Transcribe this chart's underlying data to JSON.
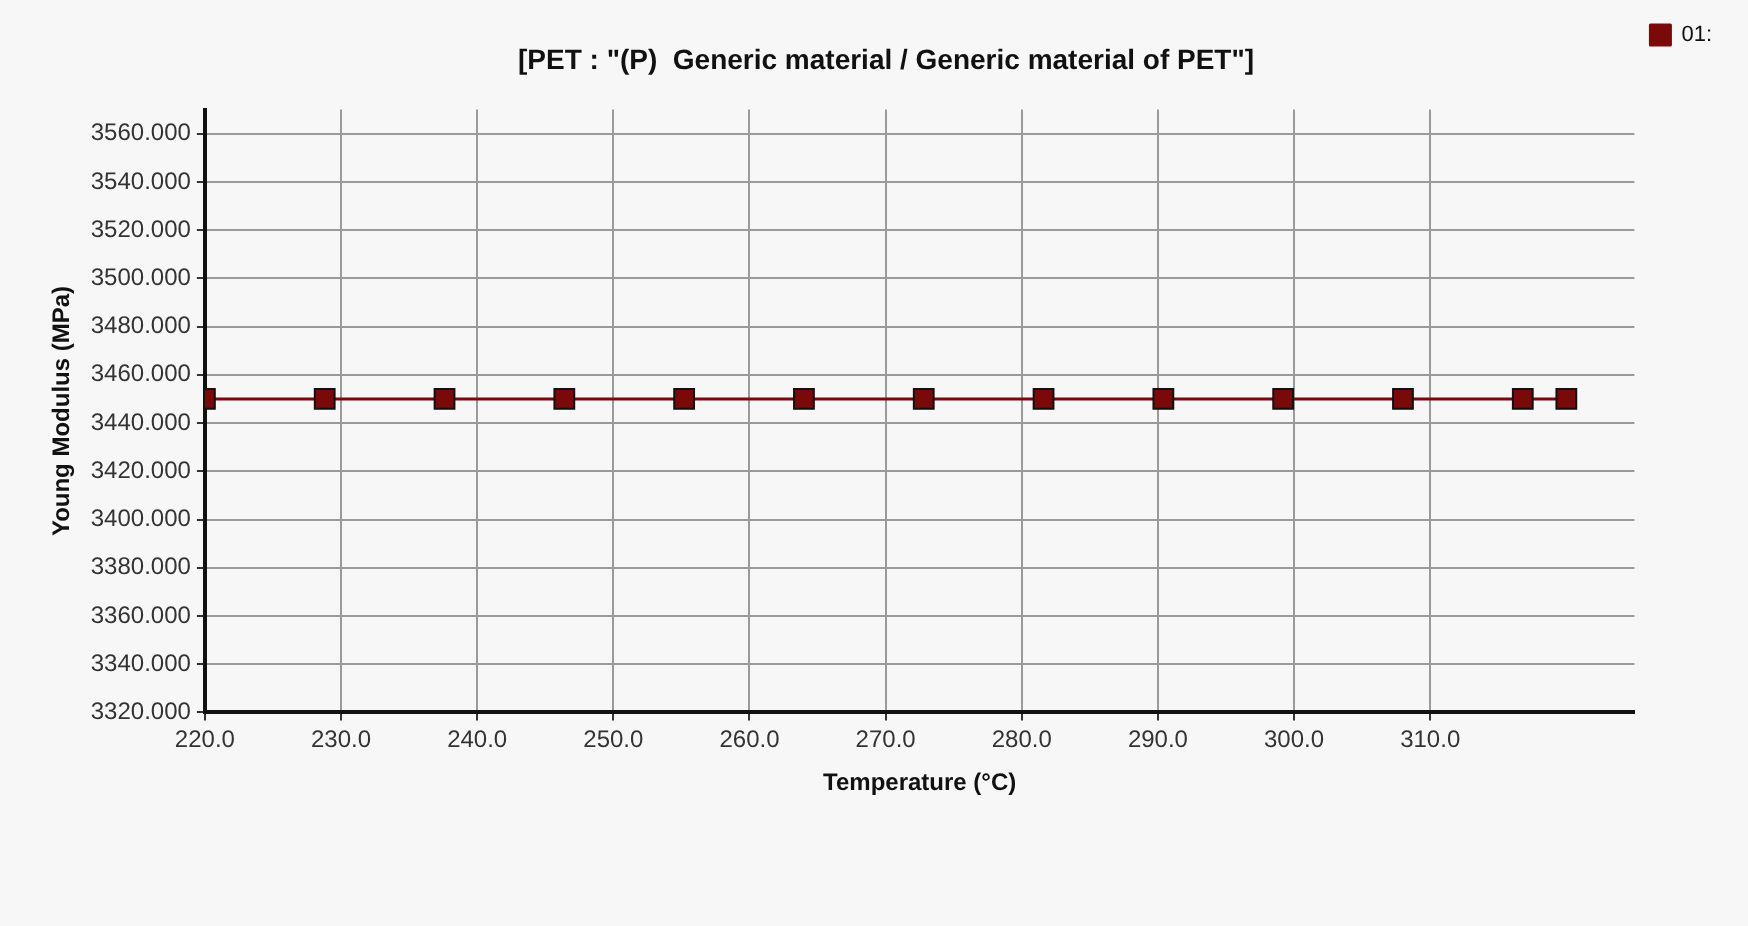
{
  "chart_data": {
    "type": "line",
    "title": "[PET : \"(P)  Generic material / Generic material of PET\"]",
    "xlabel": "Temperature (°C)",
    "ylabel": "Young Modulus (MPa)",
    "x": [
      220,
      228.8,
      237.6,
      246.4,
      255.2,
      264,
      272.8,
      281.6,
      290.4,
      299.2,
      308,
      316.8,
      320
    ],
    "series": [
      {
        "name": "01:",
        "color": "#7a0a0a",
        "values": [
          3450,
          3450,
          3450,
          3450,
          3450,
          3450,
          3450,
          3450,
          3450,
          3450,
          3450,
          3450,
          3450
        ]
      }
    ],
    "xlim": [
      220,
      325
    ],
    "xticks": [
      {
        "value": 220,
        "label": "220.0"
      },
      {
        "value": 230,
        "label": "230.0"
      },
      {
        "value": 240,
        "label": "240.0"
      },
      {
        "value": 250,
        "label": "250.0"
      },
      {
        "value": 260,
        "label": "260.0"
      },
      {
        "value": 270,
        "label": "270.0"
      },
      {
        "value": 280,
        "label": "280.0"
      },
      {
        "value": 290,
        "label": "290.0"
      },
      {
        "value": 300,
        "label": "300.0"
      },
      {
        "value": 310,
        "label": "310.0"
      }
    ],
    "ylim": [
      3320,
      3570
    ],
    "yticks": [
      {
        "value": 3320,
        "label": "3320.000"
      },
      {
        "value": 3340,
        "label": "3340.000"
      },
      {
        "value": 3360,
        "label": "3360.000"
      },
      {
        "value": 3380,
        "label": "3380.000"
      },
      {
        "value": 3400,
        "label": "3400.000"
      },
      {
        "value": 3420,
        "label": "3420.000"
      },
      {
        "value": 3440,
        "label": "3440.000"
      },
      {
        "value": 3460,
        "label": "3460.000"
      },
      {
        "value": 3480,
        "label": "3480.000"
      },
      {
        "value": 3500,
        "label": "3500.000"
      },
      {
        "value": 3520,
        "label": "3520.000"
      },
      {
        "value": 3540,
        "label": "3540.000"
      },
      {
        "value": 3560,
        "label": "3560.000"
      }
    ],
    "grid": true,
    "legend": "top right",
    "marker": "square",
    "line_style": "solid"
  }
}
